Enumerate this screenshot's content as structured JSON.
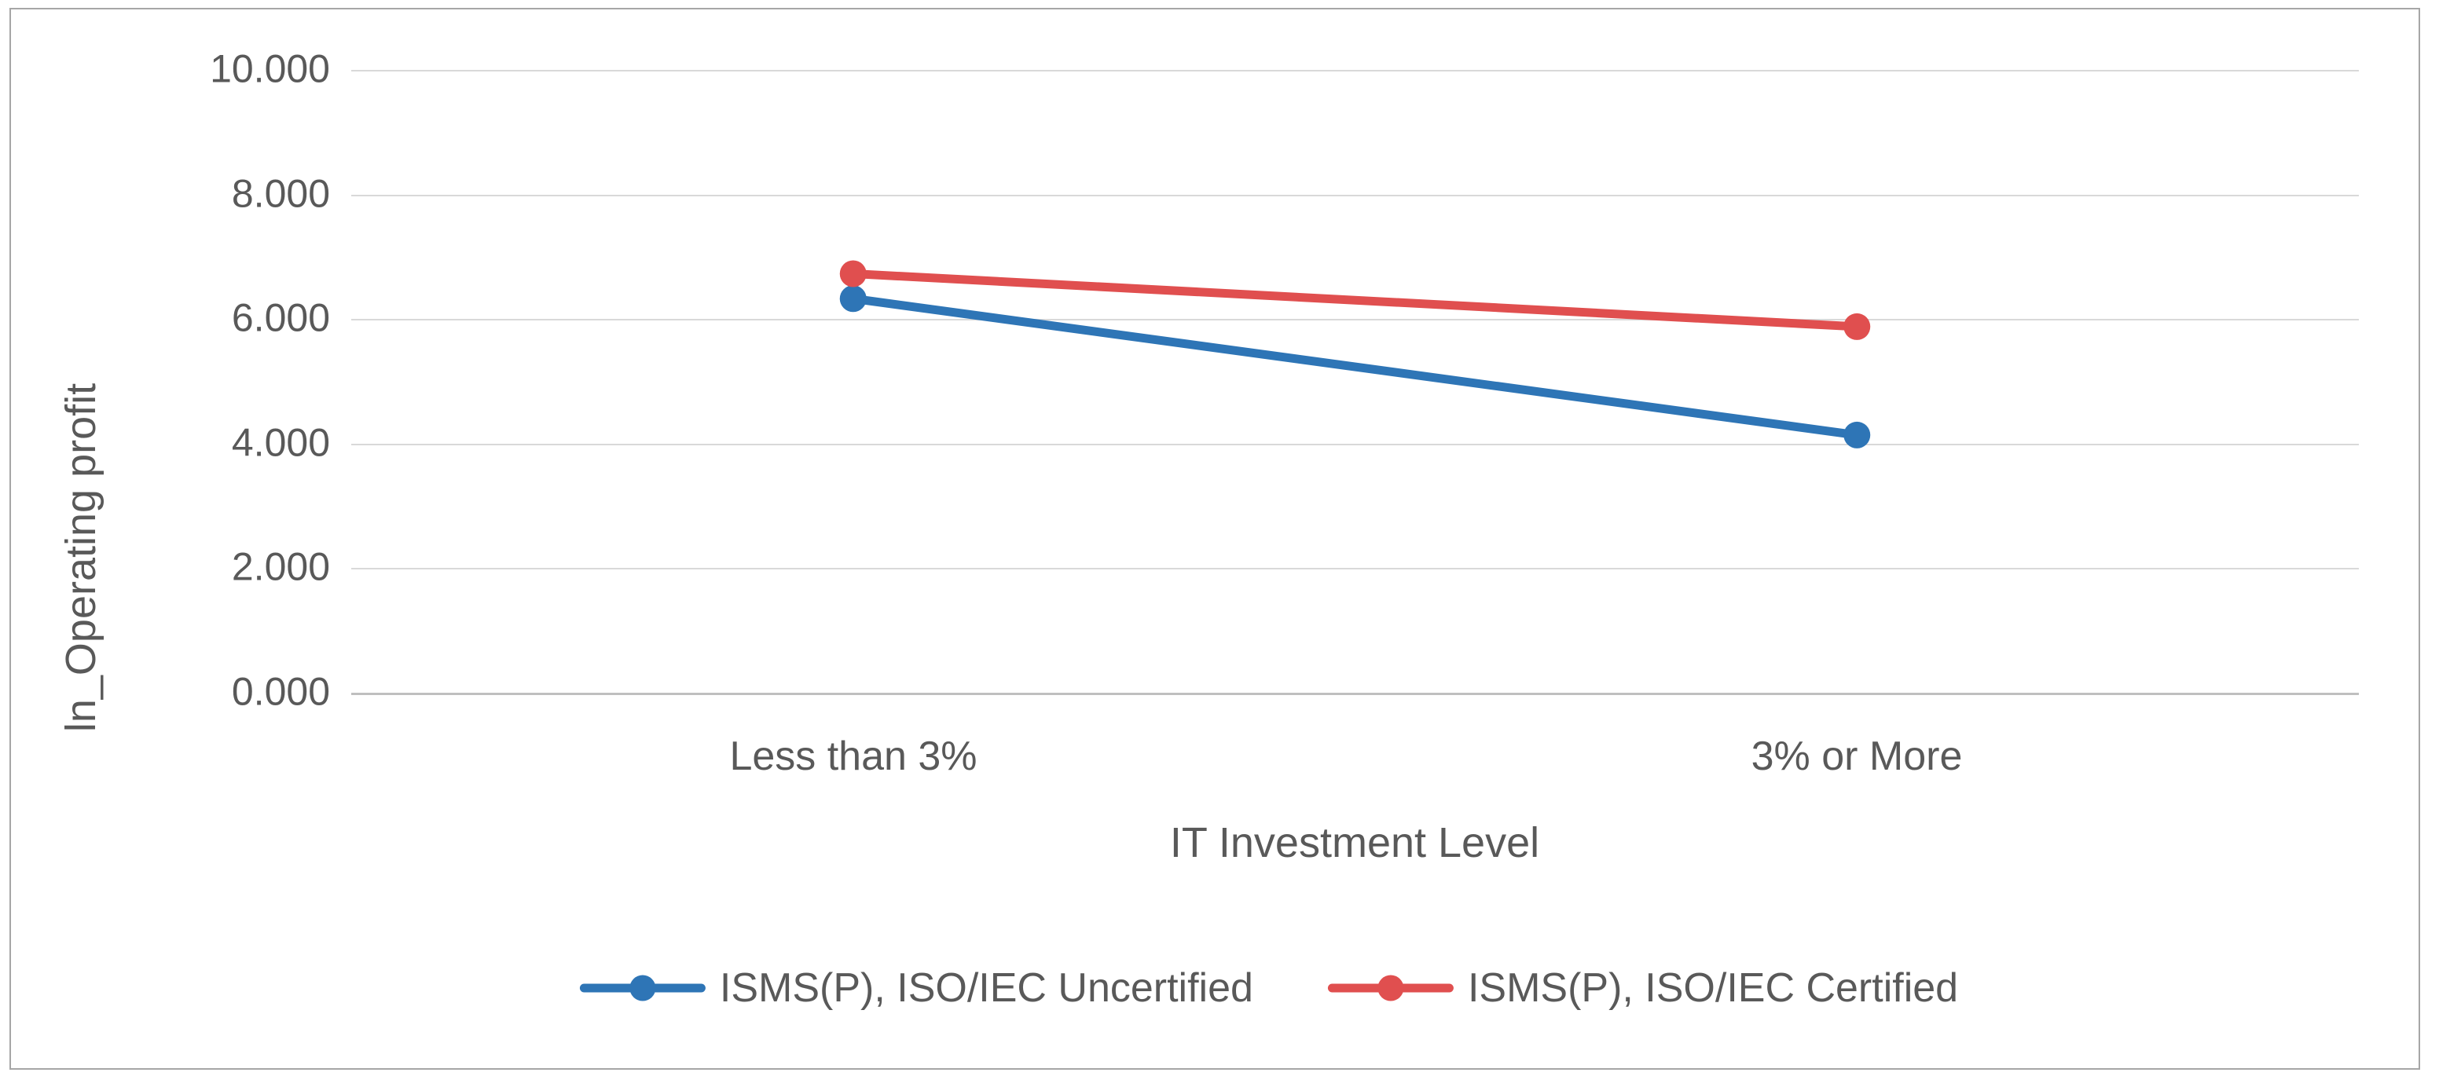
{
  "figure": {
    "background_color": "#FFFFFF",
    "border_color": "#A6A6A6",
    "gridline_color": "#D9D9D9",
    "axis_line_color": "#BFBFBF",
    "text_color": "#595959"
  },
  "chart_data": {
    "type": "line",
    "title": "",
    "categories": [
      "Less than 3%",
      "3% or More"
    ],
    "series": [
      {
        "name": "ISMS(P), ISO/IEC Uncertified",
        "color": "#2E75B6",
        "values": [
          6.34,
          4.15
        ]
      },
      {
        "name": "ISMS(P), ISO/IEC Certified",
        "color": "#E04F4F",
        "values": [
          6.74,
          5.89
        ]
      }
    ],
    "xlabel": "IT Investment Level",
    "ylabel": "ln_Operating profit",
    "ylim": [
      0,
      10
    ],
    "ytick_interval": 2,
    "ytick_labels": [
      "10.000",
      "8.000",
      "6.000",
      "4.000",
      "2.000",
      "0.000"
    ],
    "grid": true,
    "legend_position": "bottom",
    "marker": "circle"
  }
}
